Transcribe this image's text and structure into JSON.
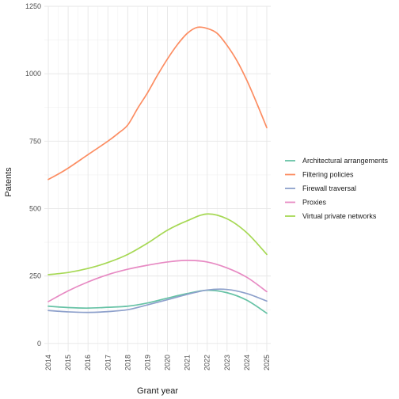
{
  "chart_data": {
    "type": "line",
    "xlabel": "Grant year",
    "ylabel": "Patents",
    "x_ticks": [
      "2014",
      "2015",
      "2016",
      "2017",
      "2018",
      "2019",
      "2020",
      "2021",
      "2022",
      "2023",
      "2024",
      "2025"
    ],
    "y_ticks": [
      "0",
      "250",
      "500",
      "750",
      "1000",
      "1250"
    ],
    "xlim": [
      2013.8,
      2025.2
    ],
    "ylim": [
      -30,
      1250
    ],
    "grid": true,
    "legend_position": "right",
    "series": [
      {
        "name": "Architectural arrangements",
        "color": "#66c2a5",
        "x": [
          2014,
          2015,
          2016,
          2017,
          2018,
          2019,
          2020,
          2021,
          2022,
          2023,
          2024,
          2025
        ],
        "values": [
          138,
          133,
          131,
          134,
          138,
          150,
          168,
          185,
          197,
          188,
          160,
          112
        ]
      },
      {
        "name": "Filtering policies",
        "color": "#fc8d62",
        "x": [
          2014,
          2014.5,
          2015,
          2016,
          2017,
          2017.5,
          2018,
          2018.5,
          2019,
          2019.5,
          2020,
          2020.5,
          2021,
          2021.5,
          2022,
          2022.5,
          2023,
          2023.5,
          2024,
          2024.5,
          2025
        ],
        "values": [
          608,
          628,
          650,
          700,
          750,
          778,
          810,
          872,
          930,
          995,
          1055,
          1108,
          1150,
          1172,
          1168,
          1150,
          1105,
          1048,
          975,
          890,
          800
        ]
      },
      {
        "name": "Firewall traversal",
        "color": "#8da0cb",
        "x": [
          2014,
          2015,
          2016,
          2017,
          2018,
          2019,
          2020,
          2021,
          2022,
          2023,
          2024,
          2025
        ],
        "values": [
          122,
          117,
          115,
          118,
          125,
          143,
          162,
          182,
          198,
          200,
          185,
          157
        ]
      },
      {
        "name": "Proxies",
        "color": "#e78ac3",
        "x": [
          2014,
          2015,
          2016,
          2017,
          2018,
          2019,
          2020,
          2021,
          2022,
          2023,
          2024,
          2025
        ],
        "values": [
          155,
          195,
          228,
          255,
          275,
          290,
          302,
          308,
          302,
          280,
          245,
          192
        ]
      },
      {
        "name": "Virtual private networks",
        "color": "#a6d854",
        "x": [
          2014,
          2015,
          2016,
          2017,
          2018,
          2019,
          2020,
          2021,
          2022,
          2023,
          2024,
          2025
        ],
        "values": [
          255,
          263,
          278,
          300,
          330,
          372,
          420,
          455,
          480,
          462,
          410,
          330
        ]
      }
    ]
  }
}
